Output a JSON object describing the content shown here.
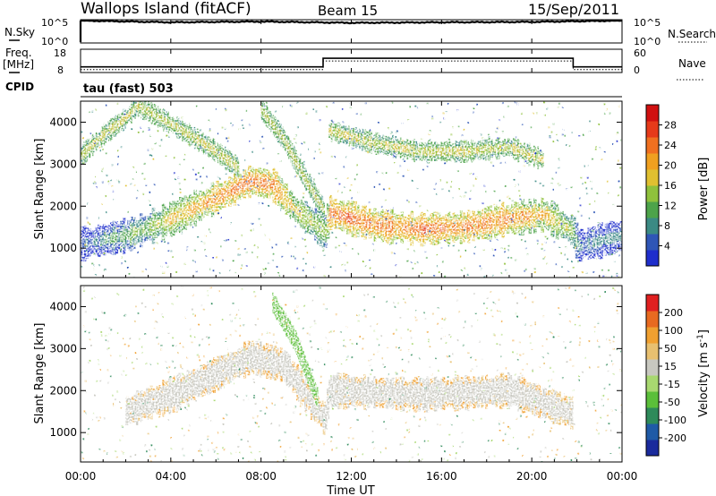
{
  "header": {
    "station": "Wallops Island (fitACF)",
    "beam": "Beam 15",
    "date": "15/Sep/2011"
  },
  "top_panels": {
    "nsky_label": "N.Sky",
    "nsky_ticks": [
      "10^5",
      "10^0"
    ],
    "nsearch_label": "N.Search",
    "nsearch_ticks": [
      "10^5",
      "10^0"
    ],
    "freq_label": "Freq.",
    "freq_unit": "[MHz]",
    "freq_ticks": [
      "18",
      "8"
    ],
    "nave_label": "Nave",
    "nave_ticks": [
      "60",
      "0"
    ],
    "cpid_label": "CPID",
    "cpid_value": "tau (fast) 503"
  },
  "power_scale": {
    "label": "Power [dB]",
    "ticks": [
      "28",
      "24",
      "20",
      "16",
      "12",
      "8",
      "4"
    ],
    "colors": [
      "#1f2ecc",
      "#2f56b6",
      "#3b8a84",
      "#4da34a",
      "#8fc13c",
      "#e0c030",
      "#f0a020",
      "#f07020",
      "#e63a1a",
      "#d01010"
    ]
  },
  "velocity_scale": {
    "label": "Velocity [m s",
    "label_sup": "-1",
    "label_end": "]",
    "ticks": [
      "200",
      "100",
      "50",
      "15",
      "-15",
      "-50",
      "-100",
      "-200"
    ],
    "colors": [
      "#1a2a9c",
      "#1f5aa6",
      "#2e8a5a",
      "#5bbf3a",
      "#a8d870",
      "#c8c8c0",
      "#e8c070",
      "#f0a030",
      "#e86a20",
      "#e02020"
    ]
  },
  "time_axis": {
    "label": "Time UT",
    "ticks": [
      "00:00",
      "04:00",
      "08:00",
      "12:00",
      "16:00",
      "20:00",
      "00:00"
    ]
  },
  "chart_data": [
    {
      "type": "line",
      "title": "N.Sky / N.Search",
      "x": [
        "00:00",
        "04:00",
        "08:00",
        "12:00",
        "16:00",
        "20:00",
        "24:00"
      ],
      "series": [
        {
          "name": "N.Sky",
          "values": [
            100000,
            40000,
            60000,
            30000,
            40000,
            50000,
            100000
          ]
        }
      ],
      "yscale": "log",
      "ylim": [
        1,
        100000
      ]
    },
    {
      "type": "line",
      "title": "Freq. / Nave",
      "x": [
        "00:00",
        "10:45",
        "10:45",
        "21:50",
        "21:50",
        "24:00"
      ],
      "series": [
        {
          "name": "Freq. [MHz]",
          "values": [
            10.2,
            10.2,
            14.2,
            14.2,
            10.2,
            10.2
          ]
        }
      ],
      "ylim": [
        8,
        18
      ]
    },
    {
      "type": "heatmap",
      "title": "Power [dB]",
      "xlabel": "Time UT",
      "ylabel": "Slant Range [km]",
      "xlim": [
        0,
        24
      ],
      "ylim": [
        300,
        4500
      ],
      "colorbar": {
        "label": "Power [dB]",
        "range": [
          0,
          30
        ],
        "ticks": [
          4,
          8,
          12,
          16,
          20,
          24,
          28
        ]
      },
      "features": [
        {
          "name": "main echo band",
          "time_h": [
            0,
            2,
            4,
            6,
            7.5,
            8.5,
            9.5,
            10.8,
            11,
            13,
            15,
            17,
            19,
            20.5,
            21.8,
            22,
            24
          ],
          "range_km": [
            1100,
            1300,
            1700,
            2200,
            2600,
            2500,
            1900,
            1400,
            1850,
            1550,
            1450,
            1500,
            1700,
            1800,
            1400,
            1050,
            1300
          ],
          "power_db": [
            8,
            14,
            20,
            24,
            26,
            24,
            20,
            16,
            26,
            25,
            26,
            25,
            24,
            22,
            16,
            10,
            10
          ]
        },
        {
          "name": "upper echo band",
          "time_h": [
            0,
            1,
            2,
            2.5,
            4.5,
            6,
            7
          ],
          "range_km": [
            3200,
            3700,
            4100,
            4400,
            3800,
            3300,
            2900
          ]
        },
        {
          "name": "diagonal descending band",
          "time_h": [
            8,
            9,
            10,
            10.8
          ],
          "range_km": [
            4300,
            3600,
            2600,
            1900
          ]
        },
        {
          "name": "late upper band",
          "time_h": [
            11,
            13,
            15,
            17,
            19,
            20.5
          ],
          "range_km": [
            3800,
            3500,
            3300,
            3300,
            3400,
            3100
          ]
        }
      ]
    },
    {
      "type": "heatmap",
      "title": "Velocity [m s-1]",
      "xlabel": "Time UT",
      "ylabel": "Slant Range [km]",
      "xlim": [
        0,
        24
      ],
      "ylim": [
        300,
        4500
      ],
      "colorbar": {
        "label": "Velocity [m s-1]",
        "range": [
          -250,
          250
        ],
        "ticks": [
          200,
          100,
          50,
          15,
          -15,
          -50,
          -100,
          -200
        ]
      },
      "features": [
        {
          "name": "ground scatter (|v|<15)",
          "time_h": [
            2,
            4,
            6,
            7.5,
            9,
            10.8,
            11,
            15,
            19,
            21.8
          ],
          "range_km": [
            1500,
            1900,
            2400,
            2800,
            2600,
            1300,
            2000,
            1900,
            2000,
            1450
          ]
        },
        {
          "name": "diagonal green streak",
          "time_h": [
            8.5,
            9.5,
            10.5
          ],
          "range_km": [
            4100,
            3200,
            1800
          ],
          "velocity": 50
        }
      ]
    }
  ]
}
